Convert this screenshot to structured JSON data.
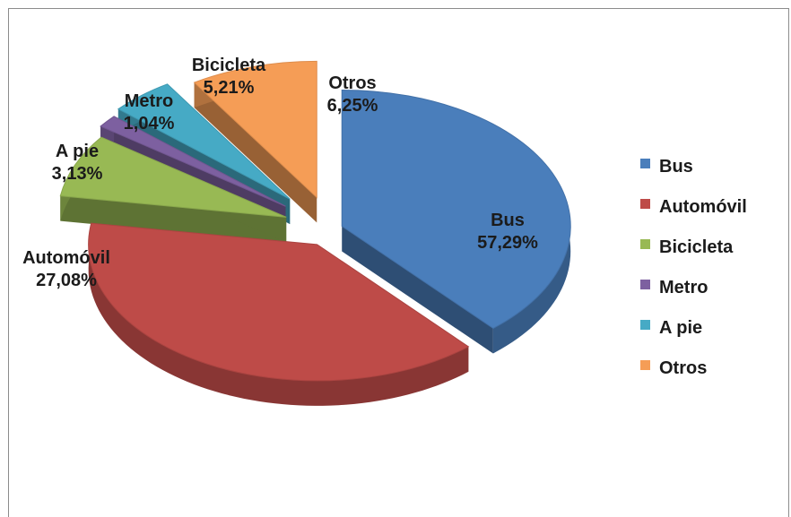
{
  "chart_data": {
    "type": "pie",
    "title": "",
    "categories": [
      "Bus",
      "Automóvil",
      "Bicicleta",
      "Metro",
      "A pie",
      "Otros"
    ],
    "values": [
      57.29,
      27.08,
      5.21,
      1.04,
      3.13,
      6.25
    ],
    "value_labels": [
      "57,29%",
      "27,08%",
      "5,21%",
      "1,04%",
      "3,13%",
      "6,25%"
    ],
    "colors": [
      "#4a7ebb",
      "#be4b48",
      "#98b954",
      "#7d60a0",
      "#46aac5",
      "#f59d56"
    ],
    "exploded": true,
    "three_d": true,
    "legend_position": "right"
  }
}
